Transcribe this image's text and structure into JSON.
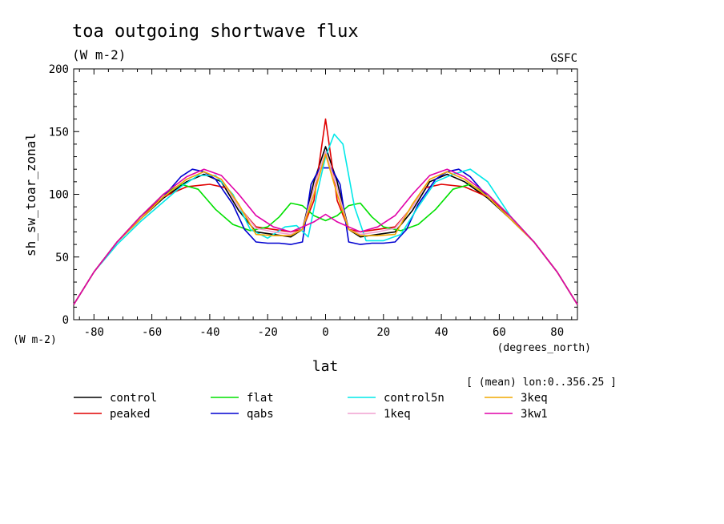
{
  "header": {
    "title": "toa outgoing shortwave flux",
    "units": "(W m-2)",
    "source": "GSFC",
    "subset_note": "[ (mean) lon:0..356.25 ]"
  },
  "chart_data": {
    "type": "line",
    "ylabel": "sh_sw_toar_zonal",
    "yunits": "(W m-2)",
    "xlabel": "lat",
    "xunits": "(degrees_north)",
    "xlim": [
      -87,
      87
    ],
    "ylim": [
      0,
      200
    ],
    "xticks": [
      "-80",
      "-60",
      "-40",
      "-20",
      "0",
      "20",
      "40",
      "60",
      "80"
    ],
    "yticks": [
      "0",
      "50",
      "100",
      "150",
      "200"
    ],
    "legend_placement": "bottom",
    "series": [
      {
        "name": "control",
        "color": "#000000",
        "x": [
          -87,
          -80,
          -72,
          -64,
          -56,
          -48,
          -42,
          -36,
          -30,
          -24,
          -18,
          -12,
          -8,
          -4,
          0,
          4,
          8,
          12,
          18,
          24,
          30,
          36,
          42,
          48,
          56,
          64,
          72,
          80,
          87
        ],
        "y": [
          12,
          38,
          62,
          80,
          97,
          110,
          116,
          110,
          87,
          70,
          68,
          66,
          72,
          110,
          138,
          110,
          72,
          66,
          68,
          70,
          87,
          110,
          116,
          110,
          97,
          80,
          62,
          38,
          12
        ]
      },
      {
        "name": "peaked",
        "color": "#e00000",
        "x": [
          -87,
          -80,
          -72,
          -64,
          -56,
          -48,
          -40,
          -34,
          -30,
          -24,
          -18,
          -12,
          -8,
          -4,
          0,
          4,
          8,
          12,
          18,
          24,
          30,
          34,
          40,
          48,
          56,
          64,
          72,
          80,
          87
        ],
        "y": [
          12,
          38,
          62,
          82,
          98,
          106,
          108,
          105,
          90,
          74,
          72,
          70,
          72,
          95,
          160,
          95,
          72,
          70,
          72,
          74,
          90,
          105,
          108,
          106,
          98,
          82,
          62,
          38,
          12
        ]
      },
      {
        "name": "flat",
        "color": "#00e000",
        "x": [
          -87,
          -80,
          -72,
          -64,
          -56,
          -50,
          -44,
          -38,
          -32,
          -26,
          -20,
          -16,
          -12,
          -8,
          -4,
          0,
          4,
          8,
          12,
          16,
          20,
          26,
          32,
          38,
          44,
          50,
          56,
          64,
          72,
          80,
          87
        ],
        "y": [
          12,
          38,
          62,
          82,
          100,
          108,
          104,
          88,
          76,
          71,
          74,
          82,
          93,
          91,
          83,
          79,
          83,
          91,
          93,
          82,
          74,
          71,
          76,
          88,
          104,
          108,
          100,
          82,
          62,
          38,
          12
        ]
      },
      {
        "name": "qabs",
        "color": "#0000d0",
        "x": [
          -87,
          -80,
          -72,
          -64,
          -56,
          -50,
          -46,
          -42,
          -38,
          -32,
          -28,
          -24,
          -20,
          -16,
          -12,
          -8,
          -5,
          -2,
          0,
          2,
          5,
          8,
          12,
          16,
          20,
          24,
          28,
          32,
          38,
          42,
          46,
          50,
          56,
          64,
          72,
          80,
          87
        ],
        "y": [
          12,
          38,
          62,
          80,
          98,
          114,
          120,
          118,
          112,
          92,
          72,
          62,
          61,
          61,
          60,
          62,
          108,
          121,
          121,
          121,
          108,
          62,
          60,
          61,
          61,
          62,
          72,
          92,
          112,
          118,
          120,
          114,
          98,
          80,
          62,
          38,
          12
        ]
      },
      {
        "name": "control5n",
        "color": "#00e8e8",
        "x": [
          -87,
          -80,
          -72,
          -64,
          -56,
          -50,
          -44,
          -38,
          -32,
          -26,
          -20,
          -14,
          -10,
          -6,
          -3,
          0,
          3,
          6,
          10,
          14,
          20,
          26,
          32,
          38,
          44,
          50,
          56,
          64,
          72,
          80,
          87
        ],
        "y": [
          12,
          38,
          60,
          78,
          94,
          106,
          115,
          115,
          100,
          72,
          65,
          74,
          75,
          66,
          100,
          130,
          148,
          140,
          90,
          63,
          63,
          68,
          90,
          110,
          116,
          120,
          110,
          82,
          62,
          38,
          12
        ]
      },
      {
        "name": "1keq",
        "color": "#f0a0d0",
        "x": [
          -87,
          -80,
          -72,
          -64,
          -56,
          -48,
          -42,
          -36,
          -30,
          -24,
          -18,
          -12,
          -8,
          -4,
          0,
          4,
          8,
          12,
          18,
          24,
          30,
          36,
          42,
          48,
          56,
          64,
          72,
          80,
          87
        ],
        "y": [
          12,
          38,
          62,
          80,
          98,
          112,
          118,
          112,
          90,
          73,
          70,
          68,
          72,
          105,
          134,
          105,
          72,
          68,
          70,
          73,
          90,
          112,
          118,
          112,
          98,
          80,
          62,
          38,
          12
        ]
      },
      {
        "name": "3keq",
        "color": "#f0a800",
        "x": [
          -87,
          -80,
          -72,
          -64,
          -56,
          -48,
          -42,
          -36,
          -30,
          -24,
          -18,
          -12,
          -8,
          -4,
          0,
          4,
          8,
          12,
          18,
          24,
          30,
          36,
          42,
          48,
          56,
          64,
          72,
          80,
          87
        ],
        "y": [
          12,
          38,
          62,
          80,
          98,
          112,
          118,
          112,
          92,
          68,
          67,
          67,
          72,
          100,
          132,
          100,
          72,
          67,
          67,
          68,
          92,
          112,
          118,
          112,
          98,
          80,
          62,
          38,
          12
        ]
      },
      {
        "name": "3kw1",
        "color": "#e000a8",
        "x": [
          -87,
          -80,
          -72,
          -64,
          -56,
          -48,
          -42,
          -36,
          -30,
          -24,
          -18,
          -12,
          -8,
          -4,
          0,
          4,
          8,
          12,
          18,
          24,
          30,
          36,
          42,
          48,
          56,
          64,
          72,
          80,
          87
        ],
        "y": [
          12,
          38,
          62,
          82,
          100,
          114,
          120,
          115,
          100,
          83,
          74,
          70,
          74,
          78,
          84,
          78,
          74,
          70,
          74,
          83,
          100,
          115,
          120,
          114,
          100,
          82,
          62,
          38,
          12
        ]
      }
    ]
  }
}
